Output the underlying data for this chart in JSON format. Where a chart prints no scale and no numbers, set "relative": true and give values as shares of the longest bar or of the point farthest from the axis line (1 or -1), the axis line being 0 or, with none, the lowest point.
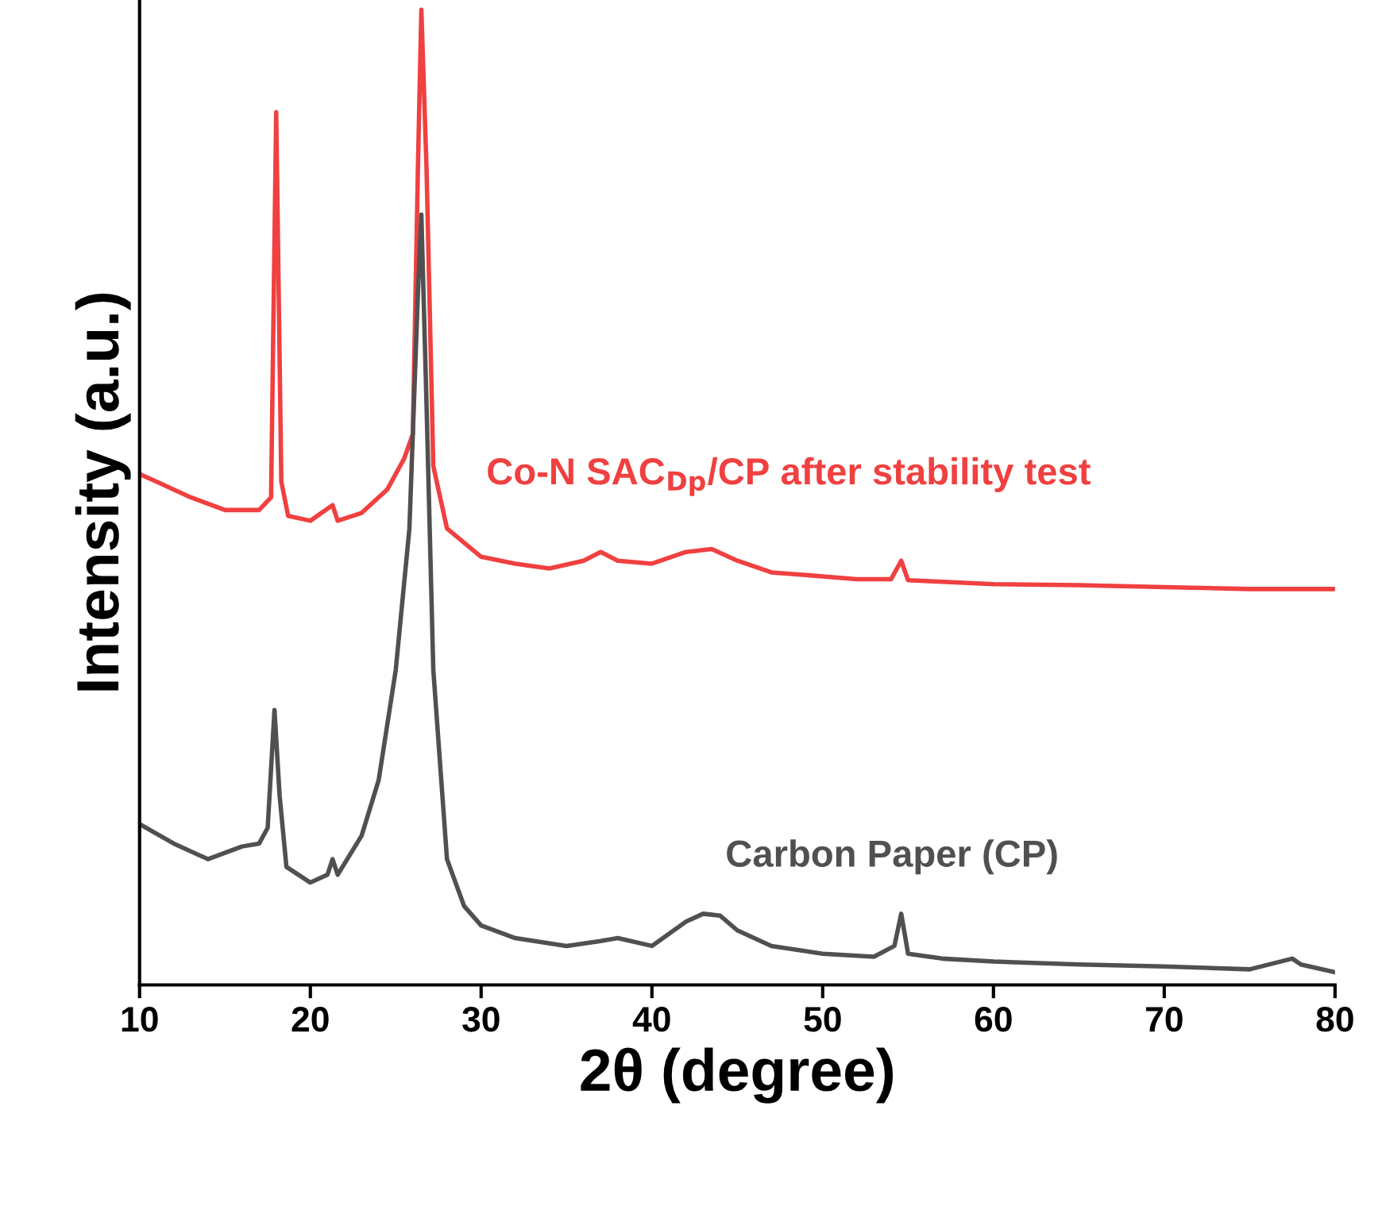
{
  "chart_data": {
    "type": "line",
    "relative": true,
    "xlabel": "2θ (degree)",
    "ylabel": "Intensity (a.u.)",
    "xlim": [
      10,
      80
    ],
    "xticks": [
      10,
      20,
      30,
      40,
      50,
      60,
      70,
      80
    ],
    "tick_labels": "x",
    "legend": false,
    "grid": false,
    "marker": "none",
    "line_style": "solid",
    "series": [
      {
        "name": "Co-N SAC$_{Dp}$/CP after stability test",
        "color": "#f04040",
        "x": [
          10,
          11,
          13,
          15,
          17,
          17.7,
          18.0,
          18.3,
          18.7,
          20,
          21.3,
          21.6,
          23,
          24.5,
          25.5,
          26.0,
          26.3,
          26.5,
          26.8,
          27.2,
          28,
          30,
          32,
          34,
          36,
          37,
          38,
          40,
          42,
          43.5,
          45,
          47,
          50,
          52,
          54,
          54.6,
          55,
          60,
          65,
          70,
          75,
          80
        ],
        "values": [
          0.524,
          0.516,
          0.5,
          0.487,
          0.487,
          0.5,
          0.895,
          0.516,
          0.481,
          0.476,
          0.492,
          0.476,
          0.484,
          0.508,
          0.54,
          0.565,
          0.839,
          1,
          0.839,
          0.532,
          0.468,
          0.439,
          0.432,
          0.427,
          0.435,
          0.444,
          0.435,
          0.432,
          0.444,
          0.447,
          0.435,
          0.423,
          0.419,
          0.416,
          0.416,
          0.435,
          0.415,
          0.411,
          0.41,
          0.408,
          0.406,
          0.406
        ]
      },
      {
        "name": "Carbon Paper (CP)",
        "color": "#505050",
        "x": [
          10,
          12,
          14,
          16,
          17,
          17.5,
          17.9,
          18.2,
          18.6,
          20,
          21,
          21.3,
          21.6,
          23,
          24,
          25,
          25.8,
          26.3,
          26.5,
          26.8,
          27.2,
          28,
          29,
          30,
          32,
          35,
          37,
          38,
          40,
          42,
          43,
          44,
          45,
          47,
          50,
          53,
          54.2,
          54.6,
          55,
          57,
          60,
          65,
          70,
          75,
          77.5,
          78,
          80
        ],
        "values": [
          0.165,
          0.145,
          0.129,
          0.142,
          0.145,
          0.161,
          0.282,
          0.194,
          0.121,
          0.105,
          0.113,
          0.129,
          0.113,
          0.153,
          0.21,
          0.323,
          0.468,
          0.71,
          0.79,
          0.597,
          0.323,
          0.129,
          0.081,
          0.061,
          0.048,
          0.04,
          0.045,
          0.048,
          0.04,
          0.065,
          0.073,
          0.071,
          0.056,
          0.04,
          0.032,
          0.029,
          0.04,
          0.073,
          0.032,
          0.027,
          0.024,
          0.021,
          0.019,
          0.016,
          0.027,
          0.021,
          0.013
        ]
      }
    ]
  }
}
